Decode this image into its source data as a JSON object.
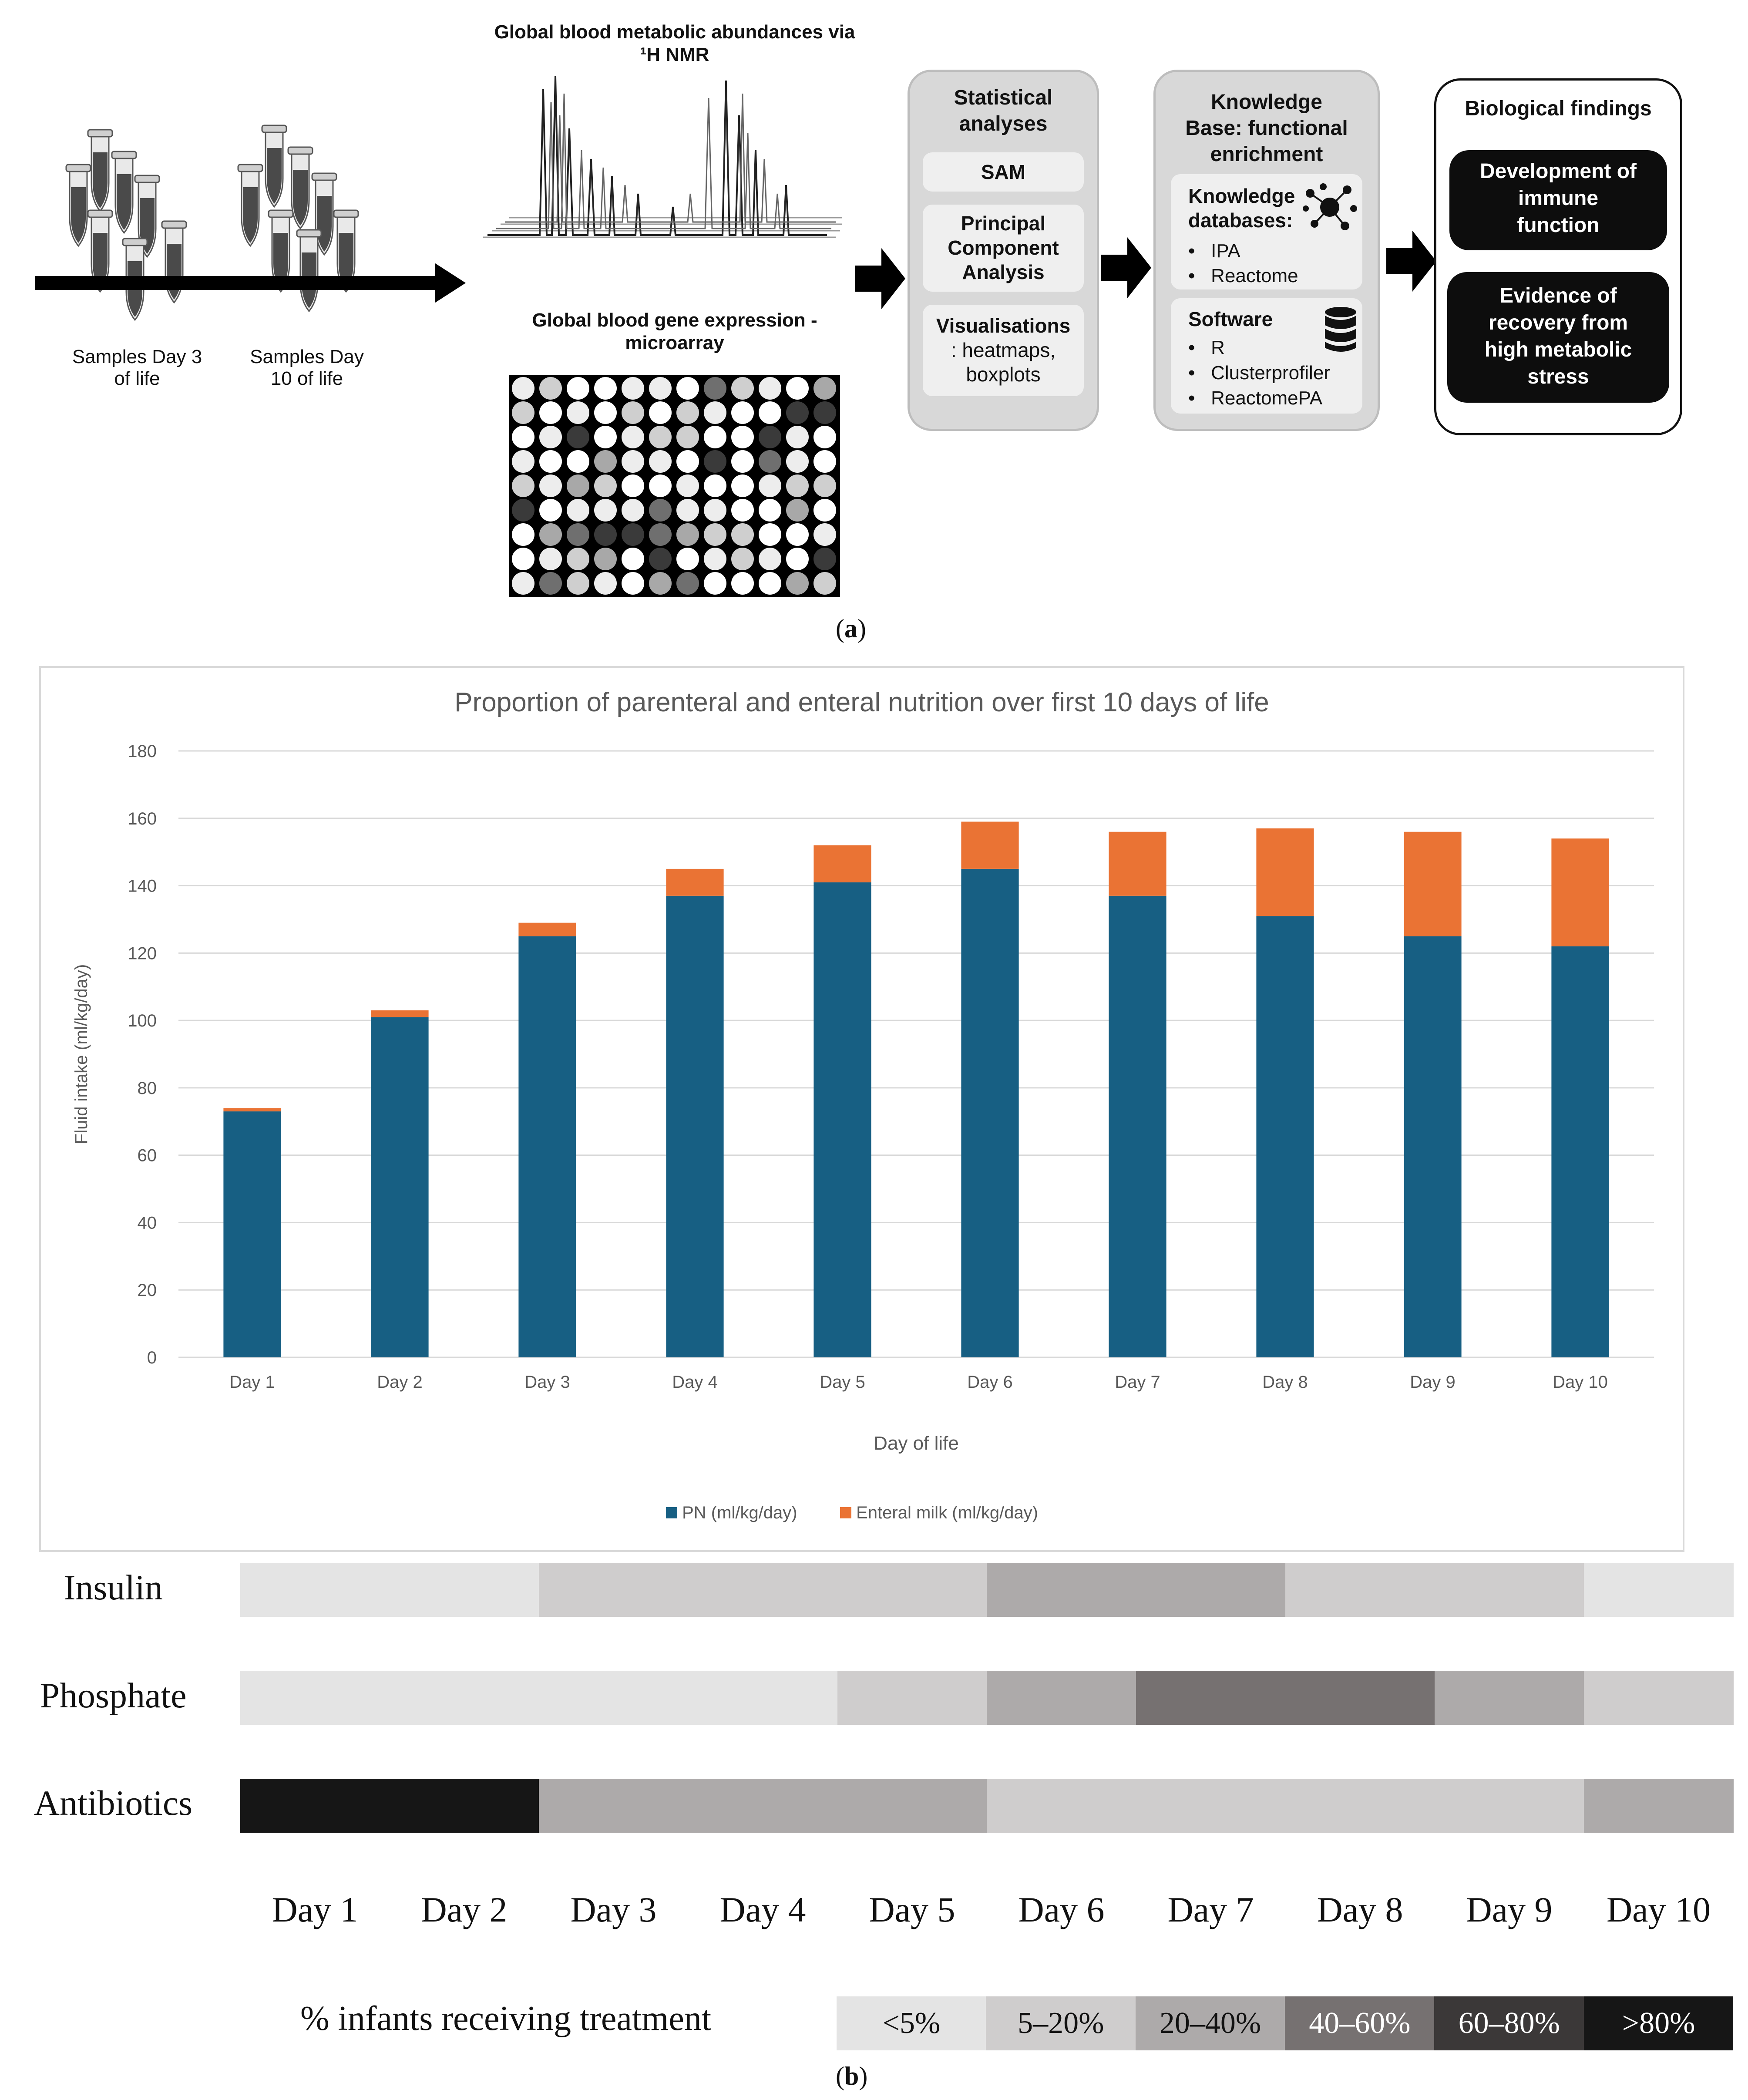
{
  "panel_a": {
    "timeline": {
      "label_day3": "Samples Day 3\nof life",
      "label_day10": "Samples Day\n10 of life"
    },
    "nmr_title": "Global blood metabolic abundances via\n¹H NMR",
    "microarray_title": "Global blood gene expression -\nmicroarray",
    "statistical": {
      "title": "Statistical\nanalyses",
      "items": [
        "SAM",
        "Principal\nComponent\nAnalysis"
      ],
      "vis_bold": "Visualisations",
      "vis_rest": ": heatmaps,\nboxplots"
    },
    "knowledge": {
      "title": "Knowledge\nBase: functional\nenrichment",
      "db_title": "Knowledge\ndatabases:",
      "db_items": [
        "IPA",
        "Reactome"
      ],
      "sw_title": "Software",
      "sw_items": [
        "R",
        "Clusterprofiler",
        "ReactomePA"
      ]
    },
    "bio": {
      "title": "Biological findings",
      "items": [
        "Development of\nimmune\nfunction",
        "Evidence of\nrecovery from\nhigh metabolic\nstress"
      ]
    },
    "caption_letter": "a"
  },
  "chart_data": {
    "type": "bar",
    "stacked": true,
    "title": "Proportion of parenteral and enteral nutrition over first 10 days of life",
    "xlabel": "Day of life",
    "ylabel": "Fluid intake (ml/kg/day)",
    "ylim": [
      0,
      180
    ],
    "yticks": [
      0,
      20,
      40,
      60,
      80,
      100,
      120,
      140,
      160,
      180
    ],
    "categories": [
      "Day 1",
      "Day 2",
      "Day 3",
      "Day 4",
      "Day 5",
      "Day 6",
      "Day 7",
      "Day 8",
      "Day 9",
      "Day 10"
    ],
    "series": [
      {
        "name": "PN (ml/kg/day)",
        "color": "#175f83",
        "values": [
          73,
          101,
          125,
          137,
          141,
          145,
          137,
          131,
          125,
          122
        ]
      },
      {
        "name": "Enteral milk (ml/kg/day)",
        "color": "#ea7334",
        "values": [
          1,
          2,
          4,
          8,
          11,
          14,
          19,
          26,
          31,
          32
        ]
      }
    ],
    "grid": true,
    "legend": "bottom"
  },
  "treatment": {
    "rows": [
      {
        "label": "Insulin",
        "levels": [
          0,
          0,
          1,
          1,
          1,
          2,
          2,
          1,
          1,
          0
        ]
      },
      {
        "label": "Phosphate",
        "levels": [
          0,
          0,
          0,
          0,
          1,
          2,
          3,
          3,
          2,
          1
        ]
      },
      {
        "label": "Antibiotics",
        "levels": [
          5,
          5,
          2,
          2,
          2,
          1,
          1,
          1,
          1,
          2
        ]
      }
    ],
    "days": [
      "Day 1",
      "Day 2",
      "Day 3",
      "Day 4",
      "Day 5",
      "Day 6",
      "Day 7",
      "Day 8",
      "Day 9",
      "Day 10"
    ],
    "legend_title": "% infants receiving treatment",
    "legend": [
      {
        "label": "<5%",
        "color": "#e4e4e4",
        "text_color": "#111111"
      },
      {
        "label": "5–20%",
        "color": "#cfcdcd",
        "text_color": "#111111"
      },
      {
        "label": "20–40%",
        "color": "#adaaaa",
        "text_color": "#111111"
      },
      {
        "label": "40–60%",
        "color": "#767171",
        "text_color": "#ffffff"
      },
      {
        "label": "60–80%",
        "color": "#3b3838",
        "text_color": "#ffffff"
      },
      {
        "label": ">80%",
        "color": "#161616",
        "text_color": "#ffffff"
      }
    ],
    "caption_letter": "b"
  }
}
